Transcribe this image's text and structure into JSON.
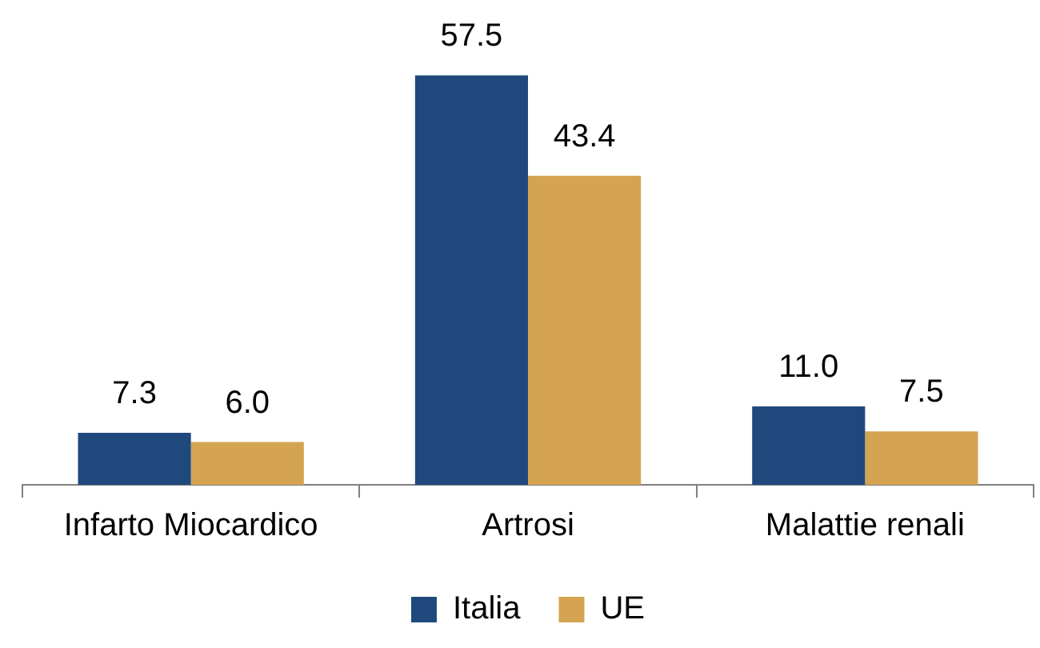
{
  "chart_data": {
    "type": "bar",
    "categories": [
      "Infarto Miocardico",
      "Artrosi",
      "Malattie renali"
    ],
    "series": [
      {
        "name": "Italia",
        "color": "#1f497d",
        "values": [
          7.3,
          57.5,
          11.0
        ],
        "value_labels": [
          "7.3",
          "57.5",
          "11.0"
        ]
      },
      {
        "name": "UE",
        "color": "#d4a452",
        "values": [
          6.0,
          43.4,
          7.5
        ],
        "value_labels": [
          "6.0",
          "43.4",
          "7.5"
        ]
      }
    ],
    "legend": "bottom",
    "grid": false
  }
}
